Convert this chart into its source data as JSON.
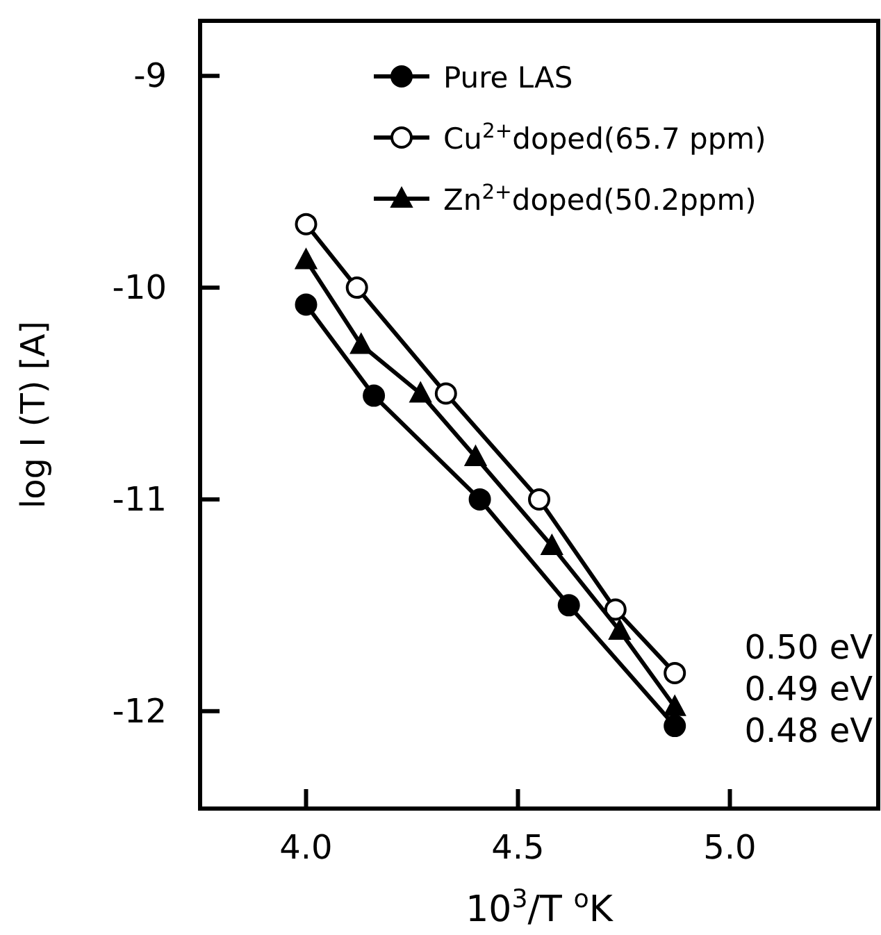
{
  "chart_data": {
    "type": "line",
    "xlabel": "10$^{3}$/T $^{o}$K",
    "ylabel": "log I (T) [A]",
    "xlim": [
      3.75,
      5.35
    ],
    "ylim": [
      -12.46,
      -8.74
    ],
    "xticks": [
      {
        "value": 4,
        "label": "4.0"
      },
      4.5,
      {
        "value": 5,
        "label": "5.0"
      }
    ],
    "yticks": [
      -12,
      -11,
      -10,
      -9
    ],
    "legend": "top right",
    "line_style": "solid",
    "annotations": [
      "0.50 eV",
      "0.49 eV",
      "0.48 eV"
    ],
    "series": [
      {
        "name": "Pure LAS",
        "color": "#000000",
        "marker": "circle",
        "x": [
          4.0,
          4.16,
          4.41,
          4.62,
          4.87
        ],
        "values": [
          -10.08,
          -10.51,
          -11.0,
          -11.5,
          -12.07
        ]
      },
      {
        "name": "Cu$^{2+}$doped(65.7 ppm)",
        "color": "#000000",
        "marker": "circle",
        "x": [
          4.0,
          4.12,
          4.33,
          4.55,
          4.73,
          4.87
        ],
        "values": [
          -9.7,
          -10.0,
          -10.5,
          -11.0,
          -11.52,
          -11.82
        ]
      },
      {
        "name": "Zn$^{2+}$doped(50.2ppm)",
        "color": "#000000",
        "marker": "triangle",
        "x": [
          4.0,
          4.13,
          4.27,
          4.4,
          4.58,
          4.74,
          4.87
        ],
        "values": [
          -9.87,
          -10.27,
          -10.5,
          -10.8,
          -11.22,
          -11.62,
          -11.98
        ]
      }
    ]
  }
}
